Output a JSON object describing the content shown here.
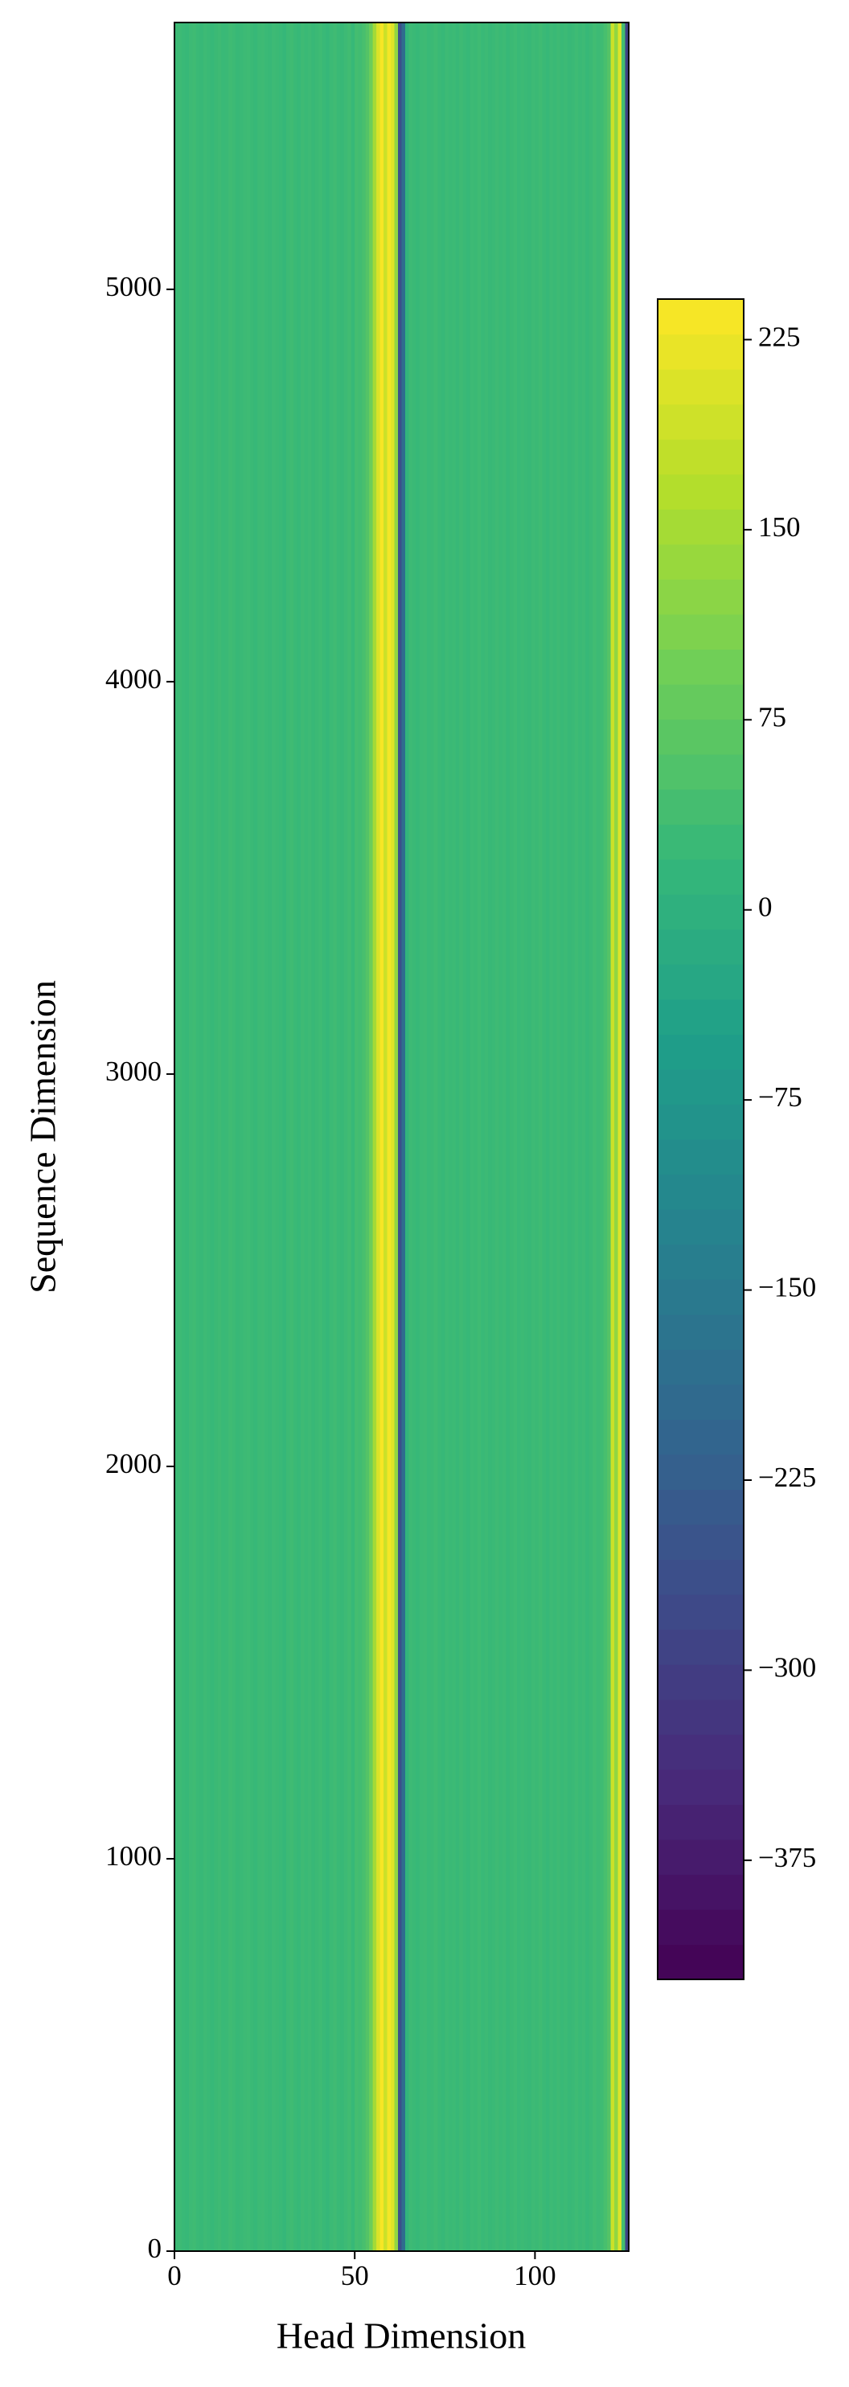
{
  "chart_data": {
    "type": "heatmap",
    "xlabel": "Head Dimension",
    "ylabel": "Sequence Dimension",
    "colormap": "viridis",
    "x": [
      0,
      1,
      2,
      3,
      4,
      5,
      6,
      7,
      8,
      9,
      10,
      11,
      12,
      13,
      14,
      15,
      16,
      17,
      18,
      19,
      20,
      21,
      22,
      23,
      24,
      25,
      26,
      27,
      28,
      29,
      30,
      31,
      32,
      33,
      34,
      35,
      36,
      37,
      38,
      39,
      40,
      41,
      42,
      43,
      44,
      45,
      46,
      47,
      48,
      49,
      50,
      51,
      52,
      53,
      54,
      55,
      56,
      57,
      58,
      59,
      60,
      61,
      62,
      63,
      64,
      65,
      66,
      67,
      68,
      69,
      70,
      71,
      72,
      73,
      74,
      75,
      76,
      77,
      78,
      79,
      80,
      81,
      82,
      83,
      84,
      85,
      86,
      87,
      88,
      89,
      90,
      91,
      92,
      93,
      94,
      95,
      96,
      97,
      98,
      99,
      100,
      101,
      102,
      103,
      104,
      105,
      106,
      107,
      108,
      109,
      110,
      111,
      112,
      113,
      114,
      115,
      116,
      117,
      118,
      119,
      120,
      121,
      122,
      123,
      124,
      125
    ],
    "values": [
      28,
      30,
      25,
      22,
      30,
      33,
      27,
      24,
      30,
      26,
      22,
      28,
      31,
      25,
      27,
      33,
      29,
      24,
      26,
      30,
      32,
      27,
      23,
      29,
      31,
      26,
      24,
      30,
      28,
      25,
      20,
      29,
      33,
      26,
      22,
      31,
      27,
      30,
      24,
      28,
      32,
      25,
      21,
      29,
      34,
      27,
      24,
      30,
      36,
      22,
      40,
      35,
      45,
      60,
      90,
      150,
      205,
      235,
      190,
      232,
      210,
      130,
      -260,
      -190,
      10,
      30,
      26,
      22,
      29,
      31,
      25,
      28,
      33,
      27,
      22,
      30,
      26,
      29,
      24,
      31,
      27,
      23,
      30,
      28,
      33,
      25,
      29,
      24,
      27,
      31,
      26,
      30,
      22,
      28,
      32,
      25,
      29,
      27,
      24,
      30,
      28,
      33,
      26,
      23,
      30,
      27,
      31,
      25,
      29,
      24,
      27,
      32,
      26,
      30,
      22,
      28,
      35,
      30,
      33,
      45,
      60,
      190,
      130,
      210,
      40,
      -290
    ],
    "xlim": [
      0,
      126
    ],
    "xticks": [
      0,
      50,
      100
    ],
    "ylim": [
      0,
      5680
    ],
    "yticks": [
      0,
      1000,
      2000,
      3000,
      4000,
      5000
    ],
    "clim": [
      -422,
      241
    ],
    "cticks": [
      225,
      150,
      75,
      0,
      {
        "value": -75,
        "label": "−75"
      },
      {
        "value": -150,
        "label": "−150"
      },
      {
        "value": -225,
        "label": "−225"
      },
      {
        "value": -300,
        "label": "−300"
      },
      {
        "value": -375,
        "label": "−375"
      }
    ]
  }
}
